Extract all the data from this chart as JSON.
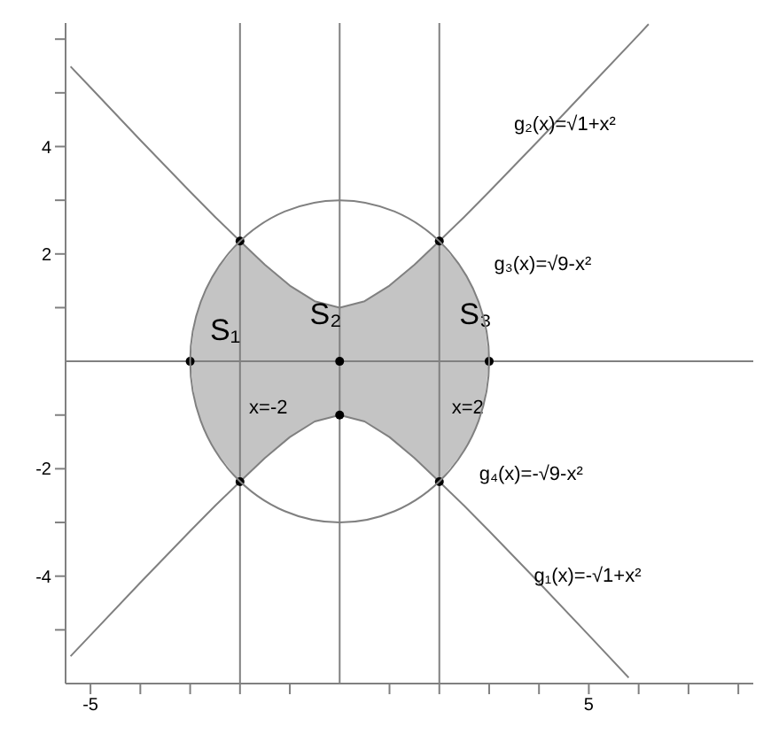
{
  "chart_data": {
    "type": "line",
    "xlim": [
      -5.5,
      8.3
    ],
    "ylim": [
      -6,
      6.3
    ],
    "xticks": [
      {
        "value": -5,
        "label": "-5"
      },
      {
        "value": -4,
        "label": null
      },
      {
        "value": -3,
        "label": null
      },
      {
        "value": -2,
        "label": null
      },
      {
        "value": -1,
        "label": null
      },
      {
        "value": 1,
        "label": null
      },
      {
        "value": 2,
        "label": null
      },
      {
        "value": 3,
        "label": null
      },
      {
        "value": 4,
        "label": null
      },
      5,
      {
        "value": 6,
        "label": null
      },
      {
        "value": 7,
        "label": null
      },
      {
        "value": 8,
        "label": null
      }
    ],
    "yticks": [
      {
        "value": -5,
        "label": null
      },
      -4,
      {
        "value": -3,
        "label": null
      },
      -2,
      {
        "value": -1,
        "label": null
      },
      {
        "value": 1,
        "label": null
      },
      2,
      {
        "value": 3,
        "label": null
      },
      4,
      {
        "value": 5,
        "label": null
      },
      {
        "value": 6,
        "label": null
      }
    ],
    "grid": false,
    "legend": false,
    "series": [
      {
        "type": "area",
        "color": "#c4c4c4",
        "x": [
          -3,
          -2.9,
          -2.75,
          -2.5,
          -2,
          -1.5,
          -1,
          -0.5,
          0,
          0.5,
          1,
          1.5,
          2,
          2.5,
          2.75,
          2.9,
          3
        ],
        "values": [
          0,
          0.77,
          1.2,
          1.66,
          2.24,
          1.8,
          1.41,
          1.12,
          1,
          1.12,
          1.41,
          1.8,
          2.24,
          1.66,
          1.2,
          0.77,
          0
        ]
      },
      {
        "type": "area",
        "color": "#c4c4c4",
        "x": [
          -3,
          -2.9,
          -2.75,
          -2.5,
          -2,
          -1.5,
          -1,
          -0.5,
          0,
          0.5,
          1,
          1.5,
          2,
          2.5,
          2.75,
          2.9,
          3
        ],
        "values": [
          0,
          -0.77,
          -1.2,
          -1.66,
          -2.24,
          -1.8,
          -1.41,
          -1.12,
          -1,
          -1.12,
          -1.41,
          -1.8,
          -2.24,
          -1.66,
          -1.2,
          -0.77,
          0
        ]
      },
      {
        "name": "g₂(x)=√1+x²",
        "color": "#808080",
        "x": [
          -5.4,
          -5,
          -4,
          -3,
          -2.5,
          -2,
          -1.5,
          -1,
          -0.5,
          0,
          0.5,
          1,
          1.5,
          2,
          2.5,
          3,
          4,
          5,
          6,
          6.2
        ],
        "values": [
          5.49,
          5.1,
          4.12,
          3.16,
          2.69,
          2.24,
          1.8,
          1.41,
          1.12,
          1,
          1.12,
          1.41,
          1.8,
          2.24,
          2.69,
          3.16,
          4.12,
          5.1,
          6.08,
          6.28
        ]
      },
      {
        "name": "g₁(x)=-√1+x²",
        "color": "#808080",
        "x": [
          -5.4,
          -5,
          -4,
          -3,
          -2.5,
          -2,
          -1.5,
          -1,
          -0.5,
          0,
          0.5,
          1,
          1.5,
          2,
          2.5,
          3,
          4,
          5,
          5.8
        ],
        "values": [
          -5.49,
          -5.1,
          -4.12,
          -3.16,
          -2.69,
          -2.24,
          -1.8,
          -1.41,
          -1.12,
          -1,
          -1.12,
          -1.41,
          -1.8,
          -2.24,
          -2.69,
          -3.16,
          -4.12,
          -5.1,
          -5.89
        ]
      },
      {
        "type": "scatter",
        "color": "#000000",
        "x": [
          -3,
          0,
          3,
          0,
          -2,
          2,
          -2,
          2
        ],
        "values": [
          0,
          0,
          0,
          -1,
          2.24,
          2.24,
          -2.24,
          -2.24
        ]
      }
    ],
    "ref_lines": [
      {
        "axis": "x",
        "value": -2,
        "label": "x=-2",
        "color": "#808080"
      },
      {
        "axis": "x",
        "value": 2,
        "label": "x=2",
        "color": "#808080"
      },
      {
        "axis": "y",
        "value": 0,
        "label": null,
        "color": "#808080"
      },
      {
        "axis": "x",
        "value": 0,
        "label": null,
        "color": "#808080"
      }
    ],
    "annotations": [
      "S₁",
      "S₂",
      "S₃",
      "g₃(x)=√9-x²",
      "g₄(x)=-√9-x²"
    ]
  }
}
